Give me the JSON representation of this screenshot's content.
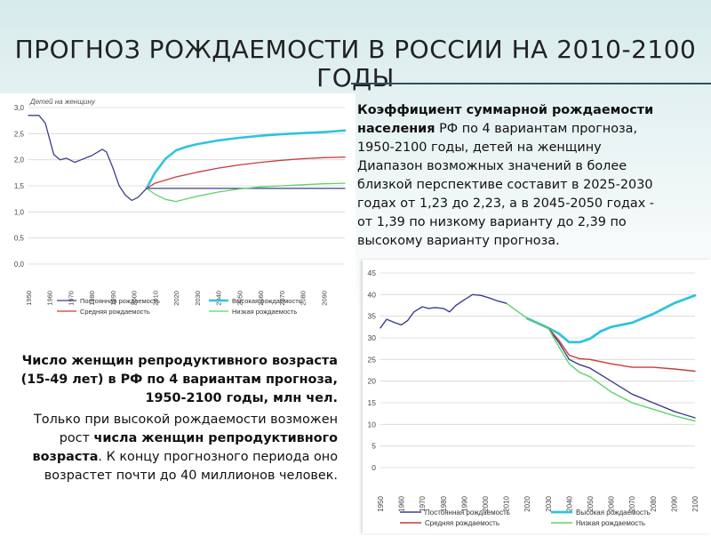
{
  "title": "ПРОГНОЗ РОЖДАЕМОСТИ В РОССИИ НА 2010-2100 ГОДЫ",
  "desc1": {
    "bold": "Коэффициент суммарной рождаемости населения",
    "text1": " РФ по 4 вариантам прогноза, 1950-2100 годы, детей на женщину",
    "text2": "Диапазон возможных значений в более близкой перспективе составит в 2025-2030 годах от 1,23 до 2,23, а в 2045-2050 годах - от 1,39 по низкому варианту до 2,39 по высокому варианту прогноза."
  },
  "desc2": {
    "line1": "Число женщин репродуктивного возраста (15-49 лет) в РФ по 4 вариантам прогноза, 1950-2100 годы, млн чел.",
    "text_a": "Только при высокой рождаемости возможен рост ",
    "bold_b": "числа женщин репродуктивного возраста",
    "text_c": ". К концу прогнозного периода оно возрастет почти до 40 миллионов человек."
  },
  "chart_data": [
    {
      "type": "line",
      "title": "Детей на женщину",
      "x_ticks": [
        "1950",
        "1960",
        "1970",
        "1980",
        "1990",
        "2000",
        "2010",
        "2020",
        "2030",
        "2040",
        "2050",
        "2060",
        "2070",
        "2080",
        "2090"
      ],
      "y_ticks": [
        "3,0",
        "2,5",
        "2,0",
        "1,5",
        "1,0",
        "0,5",
        "0,0"
      ],
      "ylim": [
        0,
        3
      ],
      "xlim": [
        1950,
        2100
      ],
      "legend": [
        "Постоянная рождаемость",
        "Высокая рождаемость",
        "Средняя рождаемость",
        "Низкая рождаемость"
      ],
      "legend_position": "bottom",
      "series": [
        {
          "name": "Постоянная рождаемость",
          "color": "#3b3f8f",
          "x": [
            2006,
            2100
          ],
          "y": [
            1.45,
            1.45
          ]
        },
        {
          "name": "Высокая рождаемость",
          "color": "#2ec4dc",
          "x": [
            2006,
            2010,
            2015,
            2020,
            2025,
            2030,
            2040,
            2050,
            2060,
            2070,
            2080,
            2090,
            2100
          ],
          "y": [
            1.45,
            1.75,
            2.02,
            2.18,
            2.25,
            2.3,
            2.37,
            2.42,
            2.46,
            2.49,
            2.51,
            2.53,
            2.56
          ]
        },
        {
          "name": "Средняя рождаемость",
          "color": "#c83c3c",
          "x": [
            2006,
            2010,
            2020,
            2030,
            2040,
            2050,
            2060,
            2070,
            2080,
            2090,
            2100
          ],
          "y": [
            1.45,
            1.55,
            1.67,
            1.76,
            1.84,
            1.9,
            1.95,
            1.99,
            2.02,
            2.04,
            2.05
          ]
        },
        {
          "name": "Низкая рождаемость",
          "color": "#5dd36a",
          "x": [
            2006,
            2010,
            2015,
            2020,
            2030,
            2040,
            2050,
            2060,
            2070,
            2080,
            2090,
            2100
          ],
          "y": [
            1.45,
            1.34,
            1.24,
            1.2,
            1.3,
            1.38,
            1.44,
            1.48,
            1.5,
            1.52,
            1.54,
            1.55
          ]
        },
        {
          "name": "",
          "color": "#3b3f8f",
          "x": [
            1950,
            1955,
            1958,
            1962,
            1965,
            1968,
            1972,
            1975,
            1980,
            1985,
            1987,
            1990,
            1993,
            1996,
            1999,
            2002,
            2006
          ],
          "y": [
            2.85,
            2.85,
            2.7,
            2.1,
            2.0,
            2.03,
            1.95,
            2.0,
            2.08,
            2.2,
            2.15,
            1.85,
            1.5,
            1.32,
            1.22,
            1.28,
            1.45
          ]
        }
      ]
    },
    {
      "type": "line",
      "y_ticks": [
        "45",
        "40",
        "35",
        "30",
        "25",
        "20",
        "15",
        "10",
        "5",
        "0"
      ],
      "x_ticks": [
        "1950",
        "1960",
        "1970",
        "1980",
        "1990",
        "2000",
        "2010",
        "2020",
        "2030",
        "2040",
        "2050",
        "2060",
        "2070",
        "2080",
        "2090",
        "2100"
      ],
      "ylim": [
        0,
        45
      ],
      "xlim": [
        1950,
        2100
      ],
      "legend": [
        "Постоянная рождаемость",
        "Высокая рождаемость",
        "Средняя рождаемость",
        "Низкая рождаемость"
      ],
      "legend_position": "bottom",
      "series": [
        {
          "name": "Постоянная рождаемость",
          "color": "#3b3f8f",
          "x": [
            2020,
            2030,
            2035,
            2040,
            2045,
            2050,
            2060,
            2070,
            2080,
            2090,
            2100
          ],
          "y": [
            34.5,
            32.3,
            29.0,
            25.0,
            23.8,
            23.0,
            20.0,
            17.0,
            15.0,
            13.0,
            11.5
          ]
        },
        {
          "name": "Высокая рождаемость",
          "color": "#2ec4dc",
          "x": [
            2020,
            2030,
            2035,
            2040,
            2045,
            2050,
            2055,
            2060,
            2070,
            2080,
            2090,
            2100
          ],
          "y": [
            34.5,
            32.3,
            31.0,
            29.0,
            29.0,
            29.8,
            31.5,
            32.5,
            33.5,
            35.5,
            38.0,
            39.8
          ]
        },
        {
          "name": "Средняя рождаемость",
          "color": "#c83c3c",
          "x": [
            2020,
            2030,
            2035,
            2040,
            2045,
            2050,
            2060,
            2070,
            2080,
            2090,
            2100
          ],
          "y": [
            34.5,
            32.3,
            29.5,
            26.0,
            25.2,
            25.0,
            24.0,
            23.2,
            23.2,
            22.8,
            22.3
          ]
        },
        {
          "name": "Низкая рождаемость",
          "color": "#5dd36a",
          "x": [
            2010,
            2020,
            2030,
            2035,
            2040,
            2045,
            2050,
            2060,
            2070,
            2080,
            2090,
            2100
          ],
          "y": [
            38.0,
            34.5,
            32.3,
            28.0,
            24.0,
            22.0,
            21.0,
            17.5,
            15.0,
            13.5,
            12.0,
            10.8
          ]
        },
        {
          "name": "",
          "color": "#3b3f8f",
          "x": [
            1950,
            1953,
            1957,
            1960,
            1963,
            1966,
            1970,
            1973,
            1976,
            1980,
            1983,
            1986,
            1990,
            1994,
            1998,
            2002,
            2006,
            2010
          ],
          "y": [
            32.3,
            34.3,
            33.5,
            33.0,
            34.0,
            36.0,
            37.2,
            36.8,
            37.0,
            36.8,
            36.0,
            37.5,
            38.8,
            40.0,
            39.8,
            39.2,
            38.5,
            38.0
          ]
        }
      ]
    }
  ]
}
